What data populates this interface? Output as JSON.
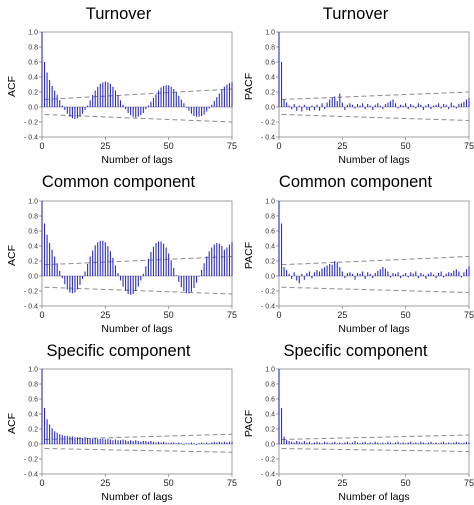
{
  "chart_data": [
    {
      "type": "bar",
      "title": "Turnover",
      "xlabel": "Number of lags",
      "ylabel": "ACF",
      "xlim": [
        0,
        75
      ],
      "ylim": [
        -0.4,
        1.0
      ],
      "xticks": [
        "0",
        "25",
        "50",
        "75"
      ],
      "yticks": [
        "1.0",
        "0.8",
        "0.6",
        "0.4",
        "0.2",
        "0.0",
        "- 0.2",
        "- 0.4"
      ],
      "lags": [
        0,
        1,
        2,
        3,
        4,
        5,
        6,
        7,
        8,
        9,
        10,
        11,
        12,
        13,
        14,
        15,
        16,
        17,
        18,
        19,
        20,
        21,
        22,
        23,
        24,
        25,
        26,
        27,
        28,
        29,
        30,
        31,
        32,
        33,
        34,
        35,
        36,
        37,
        38,
        39,
        40,
        41,
        42,
        43,
        44,
        45,
        46,
        47,
        48,
        49,
        50,
        51,
        52,
        53,
        54,
        55,
        56,
        57,
        58,
        59,
        60,
        61,
        62,
        63,
        64,
        65,
        66,
        67,
        68,
        69,
        70,
        71,
        72,
        73,
        74,
        75
      ],
      "values": [
        1.0,
        0.6,
        0.46,
        0.36,
        0.28,
        0.22,
        0.16,
        0.09,
        0.02,
        -0.04,
        -0.09,
        -0.13,
        -0.15,
        -0.16,
        -0.15,
        -0.13,
        -0.09,
        -0.04,
        0.02,
        0.09,
        0.16,
        0.22,
        0.27,
        0.31,
        0.33,
        0.34,
        0.33,
        0.31,
        0.27,
        0.22,
        0.16,
        0.09,
        0.03,
        -0.03,
        -0.08,
        -0.11,
        -0.13,
        -0.14,
        -0.13,
        -0.11,
        -0.08,
        -0.03,
        0.02,
        0.07,
        0.12,
        0.17,
        0.22,
        0.26,
        0.28,
        0.29,
        0.29,
        0.27,
        0.24,
        0.2,
        0.15,
        0.1,
        0.05,
        -0.01,
        -0.05,
        -0.09,
        -0.12,
        -0.13,
        -0.13,
        -0.12,
        -0.1,
        -0.06,
        -0.02,
        0.03,
        0.08,
        0.13,
        0.18,
        0.23,
        0.27,
        0.3,
        0.32,
        0.33
      ],
      "confidence_band": {
        "upper_start": 0.1,
        "upper_end": 0.24,
        "lower_start": -0.1,
        "lower_end": -0.2
      }
    },
    {
      "type": "bar",
      "title": "Turnover",
      "xlabel": "Number of lags",
      "ylabel": "PACF",
      "xlim": [
        0,
        75
      ],
      "ylim": [
        -0.4,
        1.0
      ],
      "xticks": [
        "0",
        "25",
        "50",
        "75"
      ],
      "yticks": [
        "1.0",
        "0.8",
        "0.6",
        "0.4",
        "0.2",
        "0.0",
        "- 0.2",
        "- 0.4"
      ],
      "lags": [
        0,
        1,
        2,
        3,
        4,
        5,
        6,
        7,
        8,
        9,
        10,
        11,
        12,
        13,
        14,
        15,
        16,
        17,
        18,
        19,
        20,
        21,
        22,
        23,
        24,
        25,
        26,
        27,
        28,
        29,
        30,
        31,
        32,
        33,
        34,
        35,
        36,
        37,
        38,
        39,
        40,
        41,
        42,
        43,
        44,
        45,
        46,
        47,
        48,
        49,
        50,
        51,
        52,
        53,
        54,
        55,
        56,
        57,
        58,
        59,
        60,
        61,
        62,
        63,
        64,
        65,
        66,
        67,
        68,
        69,
        70,
        71,
        72,
        73,
        74,
        75
      ],
      "values": [
        1.0,
        0.6,
        0.1,
        0.06,
        0.02,
        -0.03,
        0.04,
        -0.05,
        0.02,
        -0.06,
        0.03,
        -0.04,
        -0.05,
        0.02,
        -0.04,
        0.03,
        -0.05,
        0.05,
        -0.03,
        0.06,
        0.1,
        0.12,
        0.14,
        0.08,
        0.18,
        0.06,
        -0.04,
        0.03,
        0.05,
        0.03,
        -0.02,
        0.04,
        0.02,
        0.05,
        -0.03,
        0.04,
        0.02,
        -0.04,
        0.03,
        0.05,
        0.02,
        -0.03,
        0.04,
        0.06,
        0.08,
        0.1,
        0.05,
        -0.02,
        0.03,
        0.02,
        0.05,
        -0.03,
        0.04,
        0.02,
        -0.02,
        0.05,
        0.03,
        -0.04,
        0.02,
        0.04,
        -0.03,
        0.02,
        0.03,
        0.05,
        -0.02,
        0.04,
        0.03,
        -0.03,
        0.06,
        0.02,
        -0.02,
        0.04,
        0.05,
        0.07,
        0.1,
        0.12
      ],
      "confidence_band": {
        "upper_start": 0.1,
        "upper_end": 0.2,
        "lower_start": -0.1,
        "lower_end": -0.18
      }
    },
    {
      "type": "bar",
      "title": "Common component",
      "xlabel": "Number of lags",
      "ylabel": "ACF",
      "xlim": [
        0,
        75
      ],
      "ylim": [
        -0.4,
        1.0
      ],
      "xticks": [
        "0",
        "25",
        "50",
        "75"
      ],
      "yticks": [
        "1.0",
        "0.8",
        "0.6",
        "0.4",
        "0.2",
        "0.0",
        "- 0.2",
        "- 0.4"
      ],
      "lags": [
        0,
        1,
        2,
        3,
        4,
        5,
        6,
        7,
        8,
        9,
        10,
        11,
        12,
        13,
        14,
        15,
        16,
        17,
        18,
        19,
        20,
        21,
        22,
        23,
        24,
        25,
        26,
        27,
        28,
        29,
        30,
        31,
        32,
        33,
        34,
        35,
        36,
        37,
        38,
        39,
        40,
        41,
        42,
        43,
        44,
        45,
        46,
        47,
        48,
        49,
        50,
        51,
        52,
        53,
        54,
        55,
        56,
        57,
        58,
        59,
        60,
        61,
        62,
        63,
        64,
        65,
        66,
        67,
        68,
        69,
        70,
        71,
        72,
        73,
        74,
        75
      ],
      "values": [
        1.0,
        0.7,
        0.55,
        0.44,
        0.35,
        0.26,
        0.17,
        0.07,
        -0.03,
        -0.11,
        -0.18,
        -0.22,
        -0.23,
        -0.22,
        -0.18,
        -0.12,
        -0.04,
        0.06,
        0.16,
        0.26,
        0.34,
        0.41,
        0.45,
        0.47,
        0.47,
        0.45,
        0.4,
        0.33,
        0.24,
        0.14,
        0.04,
        -0.06,
        -0.14,
        -0.2,
        -0.24,
        -0.25,
        -0.24,
        -0.2,
        -0.14,
        -0.06,
        0.03,
        0.13,
        0.23,
        0.32,
        0.39,
        0.44,
        0.46,
        0.46,
        0.43,
        0.38,
        0.3,
        0.21,
        0.11,
        0.01,
        -0.08,
        -0.15,
        -0.2,
        -0.23,
        -0.23,
        -0.21,
        -0.16,
        -0.09,
        -0.01,
        0.08,
        0.17,
        0.26,
        0.33,
        0.38,
        0.42,
        0.44,
        0.43,
        0.4,
        0.35,
        0.38,
        0.42,
        0.45
      ],
      "confidence_band": {
        "upper_start": 0.15,
        "upper_end": 0.26,
        "lower_start": -0.15,
        "lower_end": -0.24
      }
    },
    {
      "type": "bar",
      "title": "Common component",
      "xlabel": "Number of lags",
      "ylabel": "PACF",
      "xlim": [
        0,
        75
      ],
      "ylim": [
        -0.4,
        1.0
      ],
      "xticks": [
        "0",
        "25",
        "50",
        "75"
      ],
      "yticks": [
        "1.0",
        "0.8",
        "0.6",
        "0.4",
        "0.2",
        "0.0",
        "- 0.2",
        "- 0.4"
      ],
      "lags": [
        0,
        1,
        2,
        3,
        4,
        5,
        6,
        7,
        8,
        9,
        10,
        11,
        12,
        13,
        14,
        15,
        16,
        17,
        18,
        19,
        20,
        21,
        22,
        23,
        24,
        25,
        26,
        27,
        28,
        29,
        30,
        31,
        32,
        33,
        34,
        35,
        36,
        37,
        38,
        39,
        40,
        41,
        42,
        43,
        44,
        45,
        46,
        47,
        48,
        49,
        50,
        51,
        52,
        53,
        54,
        55,
        56,
        57,
        58,
        59,
        60,
        61,
        62,
        63,
        64,
        65,
        66,
        67,
        68,
        69,
        70,
        71,
        72,
        73,
        74,
        75
      ],
      "values": [
        1.0,
        0.7,
        0.12,
        0.08,
        0.03,
        -0.04,
        0.05,
        -0.06,
        -0.1,
        0.03,
        -0.05,
        0.04,
        0.06,
        -0.03,
        0.05,
        0.08,
        0.06,
        0.1,
        0.12,
        0.14,
        0.16,
        0.15,
        0.2,
        0.18,
        0.12,
        0.06,
        -0.03,
        0.04,
        0.05,
        0.03,
        -0.05,
        0.04,
        0.03,
        0.06,
        -0.04,
        0.05,
        0.03,
        -0.03,
        0.04,
        0.07,
        0.09,
        0.12,
        0.1,
        0.06,
        -0.02,
        0.04,
        0.03,
        0.05,
        -0.03,
        0.02,
        0.04,
        -0.02,
        0.05,
        0.03,
        0.06,
        -0.03,
        0.04,
        0.02,
        -0.04,
        0.03,
        0.05,
        0.02,
        -0.03,
        0.04,
        0.06,
        -0.02,
        0.03,
        0.05,
        0.04,
        0.07,
        0.09,
        0.06,
        -0.02,
        0.05,
        0.09,
        0.13
      ],
      "confidence_band": {
        "upper_start": 0.15,
        "upper_end": 0.26,
        "lower_start": -0.15,
        "lower_end": -0.22
      }
    },
    {
      "type": "bar",
      "title": "Specific component",
      "xlabel": "Number of lags",
      "ylabel": "ACF",
      "xlim": [
        0,
        75
      ],
      "ylim": [
        -0.4,
        1.0
      ],
      "xticks": [
        "0",
        "25",
        "50",
        "75"
      ],
      "yticks": [
        "1.0",
        "0.8",
        "0.6",
        "0.4",
        "0.2",
        "0.0",
        "- 0.2",
        "- 0.4"
      ],
      "lags": [
        0,
        1,
        2,
        3,
        4,
        5,
        6,
        7,
        8,
        9,
        10,
        11,
        12,
        13,
        14,
        15,
        16,
        17,
        18,
        19,
        20,
        21,
        22,
        23,
        24,
        25,
        26,
        27,
        28,
        29,
        30,
        31,
        32,
        33,
        34,
        35,
        36,
        37,
        38,
        39,
        40,
        41,
        42,
        43,
        44,
        45,
        46,
        47,
        48,
        49,
        50,
        51,
        52,
        53,
        54,
        55,
        56,
        57,
        58,
        59,
        60,
        61,
        62,
        63,
        64,
        65,
        66,
        67,
        68,
        69,
        70,
        71,
        72,
        73,
        74,
        75
      ],
      "values": [
        1.0,
        0.48,
        0.33,
        0.26,
        0.21,
        0.17,
        0.15,
        0.13,
        0.12,
        0.11,
        0.11,
        0.1,
        0.1,
        0.09,
        0.09,
        0.09,
        0.08,
        0.09,
        0.08,
        0.08,
        0.07,
        0.08,
        0.07,
        0.07,
        0.07,
        0.06,
        0.07,
        0.06,
        0.05,
        0.06,
        0.05,
        0.05,
        0.06,
        0.05,
        0.04,
        0.05,
        0.04,
        0.05,
        0.04,
        0.03,
        0.04,
        0.04,
        0.03,
        0.04,
        0.03,
        0.02,
        0.03,
        0.02,
        0.03,
        0.02,
        0.01,
        0.02,
        0.02,
        0.01,
        0.02,
        0.01,
        -0.01,
        0.01,
        0.01,
        0.02,
        0.01,
        -0.01,
        0.01,
        0.02,
        0.01,
        0.02,
        0.01,
        0.02,
        0.03,
        0.02,
        0.03,
        0.02,
        0.03,
        0.02,
        0.03,
        0.03
      ],
      "confidence_band": {
        "upper_start": 0.06,
        "upper_end": 0.13,
        "lower_start": -0.06,
        "lower_end": -0.11
      }
    },
    {
      "type": "bar",
      "title": "Specific component",
      "xlabel": "Number of lags",
      "ylabel": "PACF",
      "xlim": [
        0,
        75
      ],
      "ylim": [
        -0.4,
        1.0
      ],
      "xticks": [
        "0",
        "25",
        "50",
        "75"
      ],
      "yticks": [
        "1.0",
        "0.8",
        "0.6",
        "0.4",
        "0.2",
        "0.0",
        "- 0.2",
        "- 0.4"
      ],
      "lags": [
        0,
        1,
        2,
        3,
        4,
        5,
        6,
        7,
        8,
        9,
        10,
        11,
        12,
        13,
        14,
        15,
        16,
        17,
        18,
        19,
        20,
        21,
        22,
        23,
        24,
        25,
        26,
        27,
        28,
        29,
        30,
        31,
        32,
        33,
        34,
        35,
        36,
        37,
        38,
        39,
        40,
        41,
        42,
        43,
        44,
        45,
        46,
        47,
        48,
        49,
        50,
        51,
        52,
        53,
        54,
        55,
        56,
        57,
        58,
        59,
        60,
        61,
        62,
        63,
        64,
        65,
        66,
        67,
        68,
        69,
        70,
        71,
        72,
        73,
        74,
        75
      ],
      "values": [
        1.0,
        0.48,
        0.1,
        0.05,
        0.04,
        0.03,
        0.02,
        0.04,
        0.03,
        0.02,
        0.04,
        0.02,
        0.03,
        0.01,
        0.02,
        0.03,
        0.02,
        0.01,
        0.03,
        0.02,
        0.01,
        0.02,
        0.03,
        0.01,
        0.02,
        0.01,
        0.02,
        0.03,
        0.01,
        0.02,
        0.04,
        0.02,
        0.01,
        0.02,
        0.03,
        0.01,
        0.02,
        0.01,
        0.03,
        0.02,
        0.01,
        0.02,
        0.01,
        0.03,
        0.02,
        0.01,
        0.02,
        0.03,
        0.01,
        0.02,
        0.01,
        0.02,
        0.03,
        0.01,
        0.02,
        0.01,
        0.03,
        0.02,
        0.01,
        0.02,
        0.03,
        0.01,
        0.02,
        0.01,
        0.02,
        0.03,
        0.01,
        0.02,
        0.01,
        0.02,
        0.03,
        0.02,
        0.01,
        0.02,
        0.03,
        0.02
      ],
      "confidence_band": {
        "upper_start": 0.06,
        "upper_end": 0.12,
        "lower_start": -0.06,
        "lower_end": -0.1
      }
    }
  ],
  "colors": {
    "bars": "#2a2ad0",
    "band": "#8c8c8c",
    "axis": "#8a8a8a",
    "text": "#000000"
  }
}
